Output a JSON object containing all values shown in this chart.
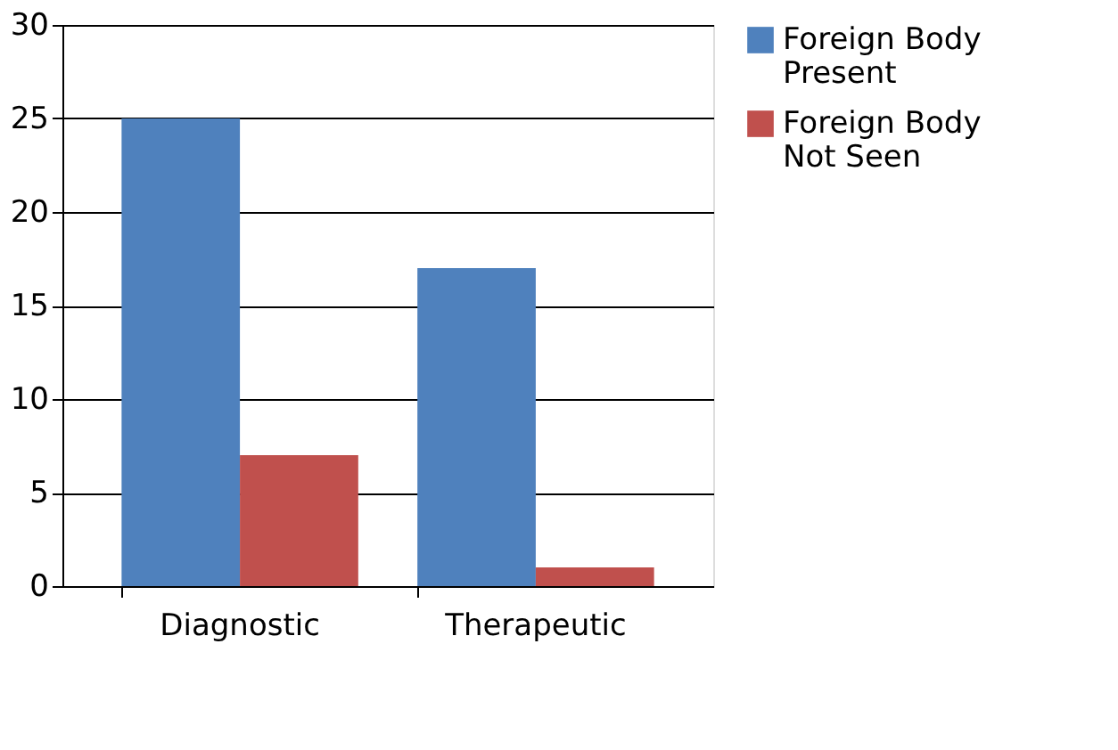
{
  "chart_data": {
    "type": "bar",
    "categories": [
      "Diagnostic",
      "Therapeutic"
    ],
    "series": [
      {
        "name": "Foreign Body Present",
        "color": "#4f81bd",
        "values": [
          25,
          17
        ]
      },
      {
        "name": "Foreign Body Not Seen",
        "color": "#c0504d",
        "values": [
          7,
          1
        ]
      }
    ],
    "ylim": [
      0,
      30
    ],
    "yticks": [
      0,
      5,
      10,
      15,
      20,
      25,
      30
    ],
    "grid": "y",
    "legend": "right"
  }
}
